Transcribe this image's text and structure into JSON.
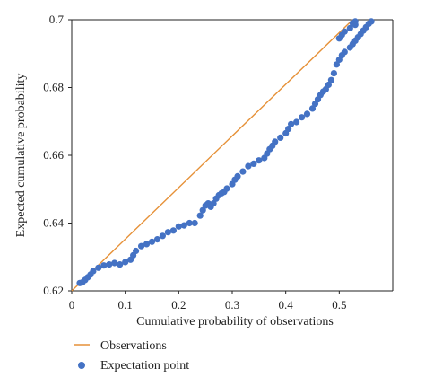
{
  "chart_data": {
    "type": "scatter",
    "title": "",
    "xlabel": "Cumulative probability of observations",
    "ylabel": "Expected cumulative probability",
    "xlim": [
      0,
      0.6
    ],
    "ylim": [
      0.62,
      0.7
    ],
    "x_ticks": [
      0,
      0.1,
      0.2,
      0.3,
      0.4,
      0.5
    ],
    "x_tick_labels": [
      "0",
      "0.1",
      "0.2",
      "0.3",
      "0.4",
      "0.5"
    ],
    "y_ticks": [
      0.62,
      0.64,
      0.66,
      0.68,
      0.7
    ],
    "y_tick_labels": [
      "0.62",
      "0.64",
      "0.66",
      "0.68",
      "0.7"
    ],
    "grid": false,
    "legend_position": "bottom-left",
    "series": [
      {
        "name": "Observations",
        "kind": "line",
        "color": "#E69138",
        "points": [
          [
            0.0,
            0.62
          ],
          [
            0.525,
            0.7
          ]
        ]
      },
      {
        "name": "Expectation point",
        "kind": "scatter",
        "color": "#4472C4",
        "points": [
          [
            0.015,
            0.6223
          ],
          [
            0.02,
            0.6225
          ],
          [
            0.025,
            0.6232
          ],
          [
            0.03,
            0.624
          ],
          [
            0.035,
            0.6248
          ],
          [
            0.04,
            0.6258
          ],
          [
            0.05,
            0.6268
          ],
          [
            0.06,
            0.6275
          ],
          [
            0.07,
            0.6278
          ],
          [
            0.08,
            0.6282
          ],
          [
            0.09,
            0.6278
          ],
          [
            0.1,
            0.6285
          ],
          [
            0.11,
            0.6292
          ],
          [
            0.115,
            0.6305
          ],
          [
            0.12,
            0.6318
          ],
          [
            0.13,
            0.6332
          ],
          [
            0.14,
            0.6338
          ],
          [
            0.15,
            0.6345
          ],
          [
            0.16,
            0.6352
          ],
          [
            0.17,
            0.6362
          ],
          [
            0.18,
            0.6373
          ],
          [
            0.19,
            0.6378
          ],
          [
            0.2,
            0.639
          ],
          [
            0.21,
            0.6393
          ],
          [
            0.22,
            0.64
          ],
          [
            0.23,
            0.64
          ],
          [
            0.24,
            0.6422
          ],
          [
            0.245,
            0.6438
          ],
          [
            0.25,
            0.6452
          ],
          [
            0.255,
            0.6458
          ],
          [
            0.26,
            0.6448
          ],
          [
            0.265,
            0.6458
          ],
          [
            0.27,
            0.6472
          ],
          [
            0.275,
            0.6482
          ],
          [
            0.28,
            0.6488
          ],
          [
            0.285,
            0.6492
          ],
          [
            0.29,
            0.6502
          ],
          [
            0.3,
            0.6515
          ],
          [
            0.305,
            0.6528
          ],
          [
            0.31,
            0.6538
          ],
          [
            0.32,
            0.6552
          ],
          [
            0.33,
            0.6568
          ],
          [
            0.34,
            0.6575
          ],
          [
            0.35,
            0.6585
          ],
          [
            0.36,
            0.6592
          ],
          [
            0.365,
            0.6605
          ],
          [
            0.37,
            0.6618
          ],
          [
            0.375,
            0.6628
          ],
          [
            0.38,
            0.664
          ],
          [
            0.39,
            0.6652
          ],
          [
            0.4,
            0.6665
          ],
          [
            0.405,
            0.6678
          ],
          [
            0.41,
            0.6692
          ],
          [
            0.42,
            0.6698
          ],
          [
            0.43,
            0.6712
          ],
          [
            0.44,
            0.6722
          ],
          [
            0.45,
            0.6738
          ],
          [
            0.455,
            0.6752
          ],
          [
            0.46,
            0.6765
          ],
          [
            0.465,
            0.6778
          ],
          [
            0.47,
            0.6788
          ],
          [
            0.475,
            0.6795
          ],
          [
            0.48,
            0.6808
          ],
          [
            0.485,
            0.6822
          ],
          [
            0.49,
            0.6842
          ],
          [
            0.495,
            0.6868
          ],
          [
            0.5,
            0.6882
          ],
          [
            0.505,
            0.6895
          ],
          [
            0.51,
            0.6905
          ],
          [
            0.52,
            0.6918
          ],
          [
            0.525,
            0.6928
          ],
          [
            0.53,
            0.6938
          ],
          [
            0.535,
            0.6948
          ],
          [
            0.54,
            0.6958
          ],
          [
            0.545,
            0.6968
          ],
          [
            0.55,
            0.6978
          ],
          [
            0.555,
            0.6988
          ],
          [
            0.56,
            0.6995
          ],
          [
            0.5,
            0.6945
          ],
          [
            0.505,
            0.6955
          ],
          [
            0.51,
            0.6965
          ],
          [
            0.52,
            0.6975
          ],
          [
            0.53,
            0.6985
          ],
          [
            0.525,
            0.699
          ],
          [
            0.53,
            0.6995
          ]
        ]
      }
    ]
  }
}
